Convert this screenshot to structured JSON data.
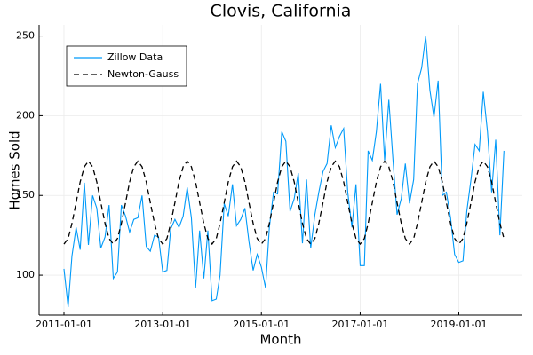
{
  "chart_data": {
    "type": "line",
    "title": "Clovis, California",
    "x_label": "Month",
    "y_label": "Homes Sold",
    "x": [
      "2011-01-01",
      "2011-02-01",
      "2011-03-01",
      "2011-04-01",
      "2011-05-01",
      "2011-06-01",
      "2011-07-01",
      "2011-08-01",
      "2011-09-01",
      "2011-10-01",
      "2011-11-01",
      "2011-12-01",
      "2012-01-01",
      "2012-02-01",
      "2012-03-01",
      "2012-04-01",
      "2012-05-01",
      "2012-06-01",
      "2012-07-01",
      "2012-08-01",
      "2012-09-01",
      "2012-10-01",
      "2012-11-01",
      "2012-12-01",
      "2013-01-01",
      "2013-02-01",
      "2013-03-01",
      "2013-04-01",
      "2013-05-01",
      "2013-06-01",
      "2013-07-01",
      "2013-08-01",
      "2013-09-01",
      "2013-10-01",
      "2013-11-01",
      "2013-12-01",
      "2014-01-01",
      "2014-02-01",
      "2014-03-01",
      "2014-04-01",
      "2014-05-01",
      "2014-06-01",
      "2014-07-01",
      "2014-08-01",
      "2014-09-01",
      "2014-10-01",
      "2014-11-01",
      "2014-12-01",
      "2015-01-01",
      "2015-02-01",
      "2015-03-01",
      "2015-04-01",
      "2015-05-01",
      "2015-06-01",
      "2015-07-01",
      "2015-08-01",
      "2015-09-01",
      "2015-10-01",
      "2015-11-01",
      "2015-12-01",
      "2016-01-01",
      "2016-02-01",
      "2016-03-01",
      "2016-04-01",
      "2016-05-01",
      "2016-06-01",
      "2016-07-01",
      "2016-08-01",
      "2016-09-01",
      "2016-10-01",
      "2016-11-01",
      "2016-12-01",
      "2017-01-01",
      "2017-02-01",
      "2017-03-01",
      "2017-04-01",
      "2017-05-01",
      "2017-06-01",
      "2017-07-01",
      "2017-08-01",
      "2017-09-01",
      "2017-10-01",
      "2017-11-01",
      "2017-12-01",
      "2018-01-01",
      "2018-02-01",
      "2018-03-01",
      "2018-04-01",
      "2018-05-01",
      "2018-06-01",
      "2018-07-01",
      "2018-08-01",
      "2018-09-01",
      "2018-10-01",
      "2018-11-01",
      "2018-12-01",
      "2019-01-01",
      "2019-02-01",
      "2019-03-01",
      "2019-04-01",
      "2019-05-01",
      "2019-06-01",
      "2019-07-01",
      "2019-08-01",
      "2019-09-01",
      "2019-10-01",
      "2019-11-01",
      "2019-12-01"
    ],
    "series": [
      {
        "name": "Zillow Data",
        "color": "#009af9",
        "line_style": "solid",
        "values": [
          104,
          80,
          112,
          130,
          116,
          158,
          119,
          150,
          142,
          117,
          124,
          144,
          98,
          102,
          144,
          137,
          127,
          135,
          136,
          150,
          118,
          115,
          125,
          124,
          102,
          103,
          129,
          135,
          130,
          137,
          155,
          136,
          92,
          128,
          98,
          128,
          84,
          85,
          100,
          145,
          137,
          157,
          131,
          135,
          142,
          121,
          103,
          113,
          105,
          92,
          130,
          152,
          151,
          190,
          184,
          140,
          148,
          164,
          120,
          160,
          117,
          138,
          152,
          165,
          170,
          194,
          180,
          187,
          192,
          152,
          130,
          157,
          106,
          106,
          178,
          172,
          190,
          220,
          172,
          210,
          172,
          138,
          148,
          170,
          145,
          160,
          220,
          230,
          250,
          216,
          199,
          222,
          150,
          152,
          136,
          113,
          108,
          109,
          140,
          160,
          182,
          178,
          215,
          190,
          152,
          185,
          125,
          178
        ]
      },
      {
        "name": "Newton-Gauss",
        "color": "#000000",
        "line_style": "dashed",
        "values": [
          119.5,
          123,
          132.5,
          145.5,
          158.5,
          168,
          171.5,
          168,
          158.5,
          145.5,
          132.5,
          123,
          119.5,
          123,
          132.5,
          145.5,
          158.5,
          168,
          171.5,
          168,
          158.5,
          145.5,
          132.5,
          123,
          119.5,
          123,
          132.5,
          145.5,
          158.5,
          168,
          171.5,
          168,
          158.5,
          145.5,
          132.5,
          123,
          119.5,
          123,
          132.5,
          145.5,
          158.5,
          168,
          171.5,
          168,
          158.5,
          145.5,
          132.5,
          123,
          119.5,
          123,
          132.5,
          145.5,
          158.5,
          168,
          171.5,
          168,
          158.5,
          145.5,
          132.5,
          123,
          119.5,
          123,
          132.5,
          145.5,
          158.5,
          168,
          171.5,
          168,
          158.5,
          145.5,
          132.5,
          123,
          119.5,
          123,
          132.5,
          145.5,
          158.5,
          168,
          171.5,
          168,
          158.5,
          145.5,
          132.5,
          123,
          119.5,
          123,
          132.5,
          145.5,
          158.5,
          168,
          171.5,
          168,
          158.5,
          145.5,
          132.5,
          123,
          119.5,
          123,
          132.5,
          145.5,
          158.5,
          168,
          171.5,
          168,
          158.5,
          145.5,
          132.5,
          123
        ]
      }
    ],
    "xlim": [
      "2010-07-01",
      "2020-04-15"
    ],
    "xticks": [
      "2011-01-01",
      "2013-01-01",
      "2015-01-01",
      "2017-01-01",
      "2019-01-01"
    ],
    "ylim": [
      75,
      257
    ],
    "yticks": [
      100,
      150,
      200,
      250
    ],
    "grid": true,
    "legend": "top-left"
  }
}
